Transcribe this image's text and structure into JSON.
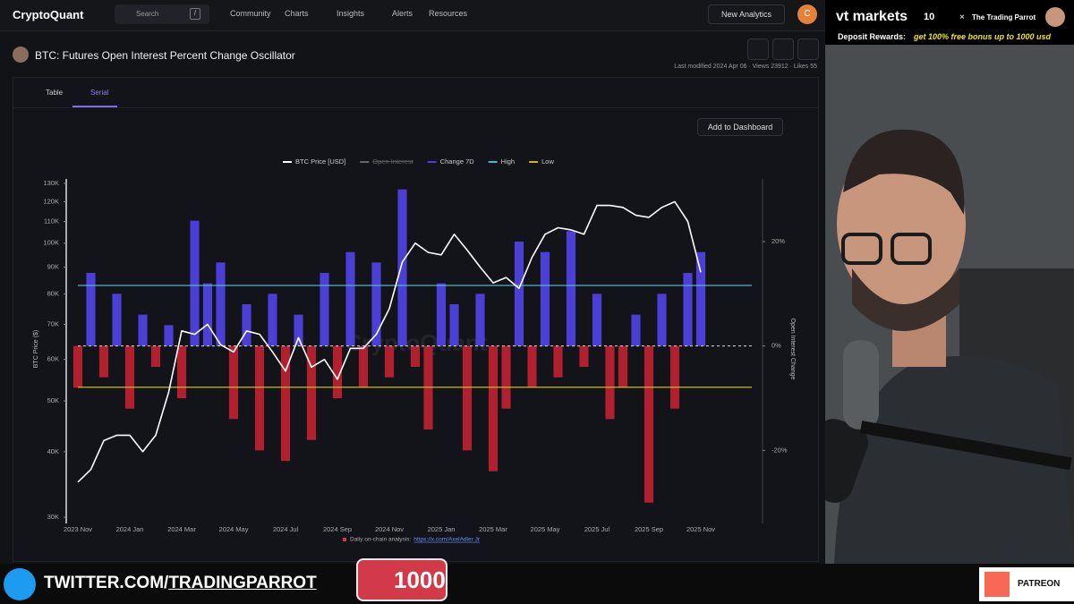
{
  "nav": {
    "logo": "CryptoQuant",
    "search": "Search",
    "search_key": "/",
    "links": [
      "Community",
      "Charts",
      "Insights",
      "Alerts",
      "Resources"
    ],
    "button": "New Analytics",
    "avatar": "C"
  },
  "header": {
    "title": "BTC: Futures Open Interest Percent Change Oscillator",
    "meta": "Last modified 2024 Apr 06 · Views 23912 · Likes 55"
  },
  "tabs": [
    "Table",
    "Serial"
  ],
  "add_button": "Add to Dashboard",
  "chart_data": {
    "type": "line",
    "watermark": "CryptoQuant",
    "ylabel": "BTC Price ($)",
    "y2label": "Open Interest Change",
    "log_y": true,
    "zero_line": true,
    "categories": [
      "2023 Nov",
      null,
      null,
      null,
      "2024 Jan",
      null,
      null,
      null,
      "2024 Mar",
      null,
      null,
      null,
      "2024 May",
      null,
      null,
      null,
      "2024 Jul",
      null,
      null,
      null,
      "2024 Sep",
      null,
      null,
      null,
      "2024 Nov",
      null,
      null,
      null,
      "2025 Jan",
      null,
      null,
      null,
      "2025 Mar",
      null,
      null,
      null,
      "2025 May",
      null,
      null,
      null,
      "2025 Jul",
      null,
      null,
      null,
      "2025 Sep",
      null,
      null,
      null,
      "2025 Nov"
    ],
    "ylim": [
      30000,
      130000
    ],
    "yticks": [
      {
        "value": 30000,
        "label": "30K"
      },
      {
        "value": 40000,
        "label": "40K"
      },
      {
        "value": 50000,
        "label": "50K"
      },
      {
        "value": 60000,
        "label": "60K"
      },
      {
        "value": 70000,
        "label": "70K"
      },
      {
        "value": 80000,
        "label": "80K"
      },
      {
        "value": 90000,
        "label": "90K"
      },
      {
        "value": 100000,
        "label": "100K"
      },
      {
        "value": 110000,
        "label": "110K"
      },
      {
        "value": 120000,
        "label": "120K"
      },
      {
        "value": 130000,
        "label": "130K"
      }
    ],
    "y2lim": [
      -34,
      32
    ],
    "y2ticks": [
      {
        "value": 20,
        "label": "20%"
      },
      {
        "value": 0,
        "label": "0%"
      },
      {
        "value": -20,
        "label": "-20%"
      }
    ],
    "series": [
      {
        "name": "BTC Price [USD]",
        "color": "#ffffff",
        "values": [
          35000,
          37000,
          42000,
          43000,
          43000,
          40000,
          43000,
          52000,
          68000,
          67000,
          70000,
          64000,
          62000,
          68000,
          67000,
          62000,
          57000,
          66000,
          58000,
          60000,
          55000,
          63000,
          63000,
          67000,
          75000,
          92000,
          100000,
          96000,
          95000,
          104000,
          97000,
          90000,
          84000,
          86000,
          82000,
          94000,
          104000,
          107000,
          106000,
          104000,
          118000,
          118000,
          117000,
          113000,
          112000,
          117000,
          120000,
          110000,
          88000
        ]
      },
      {
        "name": "Open Interest",
        "color": "#666666",
        "hidden": true
      },
      {
        "name": "Change 7D",
        "color": "#4b3fd6",
        "negative_color": "#b0202e",
        "axis": "y2",
        "style": "bar",
        "values": [
          -8,
          14,
          -6,
          10,
          -12,
          6,
          -4,
          4,
          -10,
          24,
          12,
          16,
          -14,
          8,
          -20,
          10,
          -22,
          6,
          -18,
          14,
          -10,
          18,
          -8,
          16,
          -6,
          30,
          -4,
          -16,
          12,
          8,
          -20,
          10,
          -24,
          -12,
          20,
          -8,
          18,
          -6,
          22,
          -4,
          10,
          -14,
          -8,
          6,
          -30,
          10,
          -12,
          14,
          18
        ]
      },
      {
        "name": "High",
        "color": "#4fb3c8",
        "axis": "y2",
        "value": 11.6
      },
      {
        "name": "Low",
        "color": "#c9b81f",
        "axis": "y2",
        "value": -7.9
      }
    ],
    "source_note": "Daily on-chain analysis:",
    "source_link": "https://x.com/AxelAdler Jr"
  },
  "ad": {
    "brand": "vt markets",
    "badge": "10",
    "times": "×",
    "partner": "The Trading Parrot",
    "label": "Deposit Rewards:",
    "offer": "get 100% free bonus up to 1000 usd"
  },
  "footer_bar": {
    "twitter_prefix": "TWITTER.COM/",
    "twitter_handle": "TRADINGPARROT",
    "likes": "1000",
    "patreon": "PATREON"
  }
}
